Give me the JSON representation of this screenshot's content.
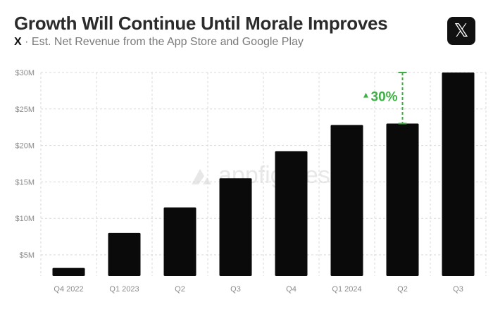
{
  "header": {
    "title": "Growth Will Continue Until Morale Improves",
    "subtitle_brand": "X",
    "subtitle_text": "· Est. Net Revenue from the App Store and Google Play"
  },
  "logo": {
    "glyph": "𝕏",
    "icon": "x-logo-icon"
  },
  "watermark": {
    "text": "appfigures"
  },
  "colors": {
    "bar": "#0a0a0a",
    "accent": "#3cb043",
    "grid": "#d8d8d8"
  },
  "chart_data": {
    "type": "bar",
    "title": "Growth Will Continue Until Morale Improves",
    "subtitle": "X · Est. Net Revenue from the App Store and Google Play",
    "xlabel": "",
    "ylabel": "",
    "categories": [
      "Q4 2022",
      "Q1 2023",
      "Q2",
      "Q3",
      "Q4",
      "Q1 2024",
      "Q2",
      "Q3"
    ],
    "values": [
      3.2,
      8.0,
      11.5,
      15.5,
      19.2,
      22.8,
      23.0,
      30.0
    ],
    "ylim": [
      2,
      30
    ],
    "yticks": [
      5,
      10,
      15,
      20,
      25,
      30
    ],
    "ytick_labels": [
      "$5M",
      "$10M",
      "$15M",
      "$20M",
      "$25M",
      "$30M"
    ],
    "grid": true,
    "annotation": {
      "label": "30%",
      "arrow": "▲",
      "from_index": 6,
      "to_index": 7
    }
  }
}
